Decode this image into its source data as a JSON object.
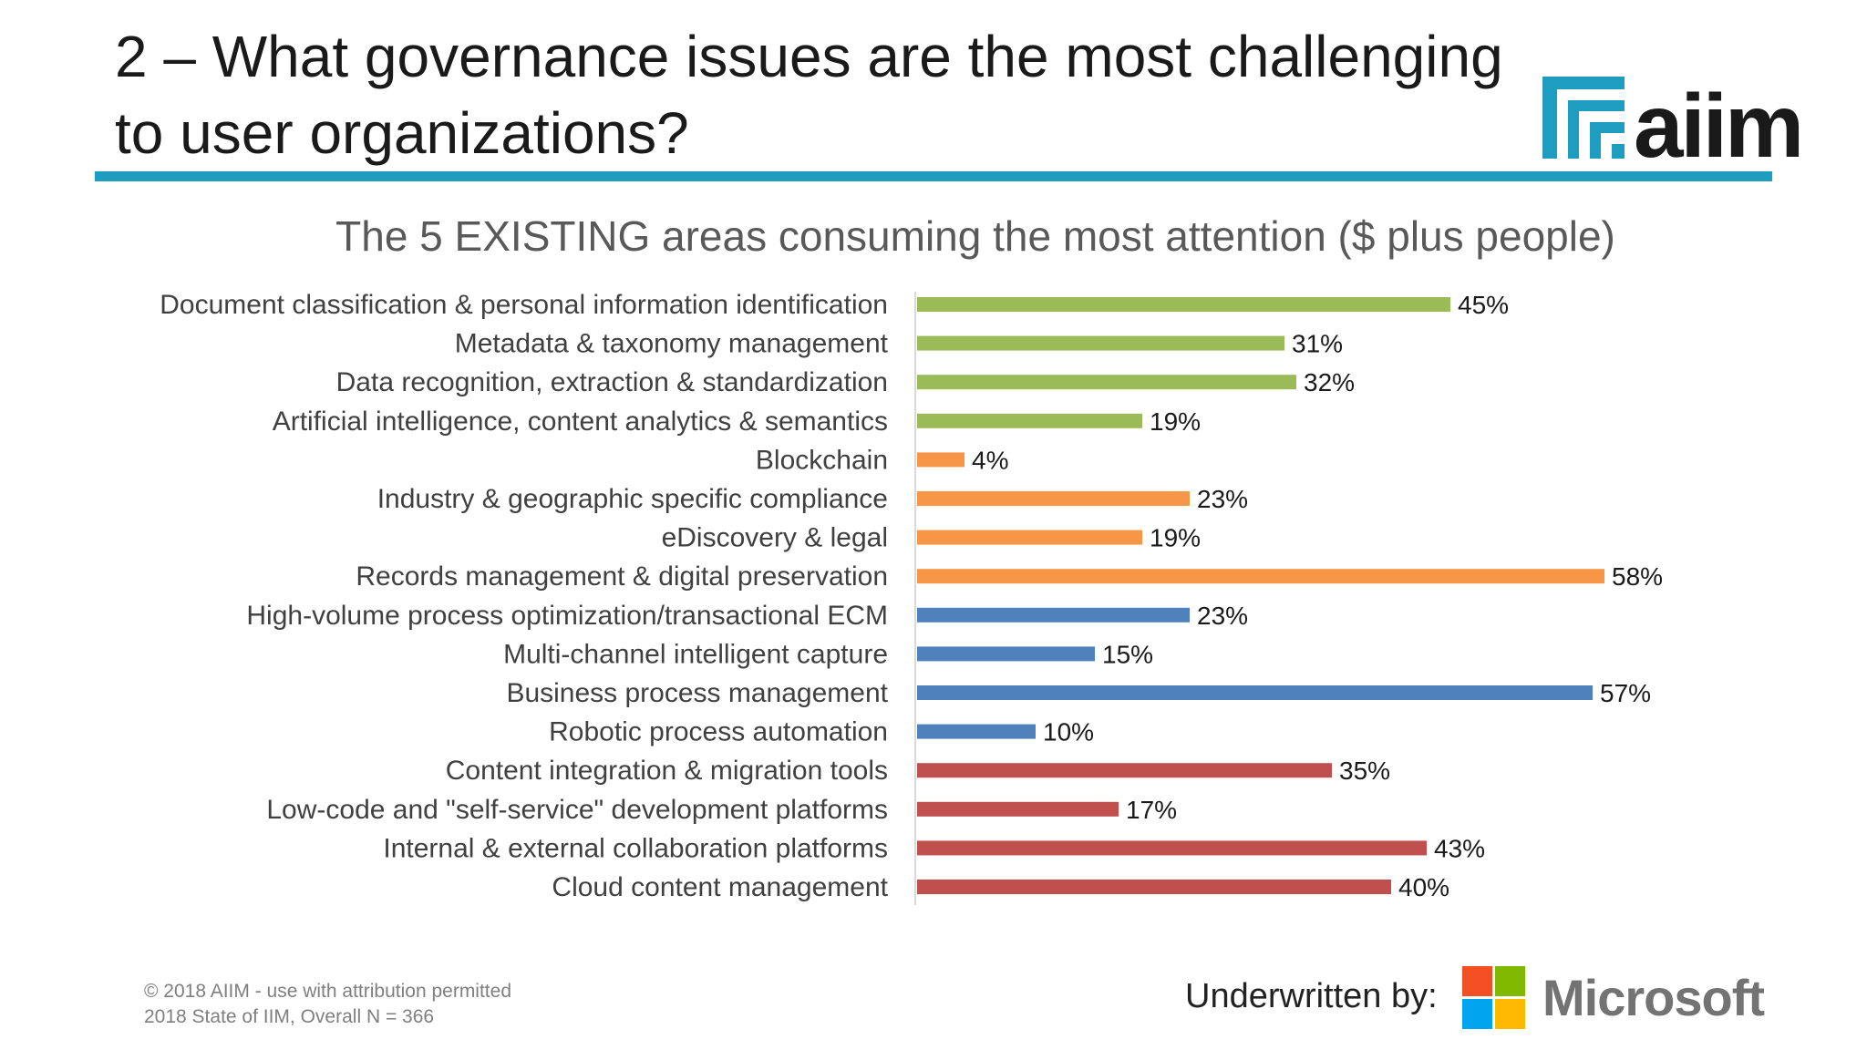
{
  "slide": {
    "title": "2 – What governance issues are the most challenging to user organizations?",
    "copyright": "© 2018 AIIM - use with attribution permitted",
    "source": "2018 State of IIM, Overall N = 366",
    "underwritten_label": "Underwritten by:",
    "sponsor_name": "Microsoft",
    "logo_text": "aiim"
  },
  "colors": {
    "rule": "#1e9dc0",
    "green": "#9bbb59",
    "orange": "#f79646",
    "blue": "#4f81bd",
    "red": "#c0504d"
  },
  "chart_data": {
    "type": "bar",
    "orientation": "horizontal",
    "title": "The 5 EXISTING areas consuming the most attention ($ plus people)",
    "xlabel": "",
    "ylabel": "",
    "xlim": [
      0,
      100
    ],
    "grid": false,
    "legend": "none",
    "categories": [
      "Document classification & personal information identification",
      "Metadata & taxonomy management",
      "Data recognition, extraction & standardization",
      "Artificial intelligence, content analytics & semantics",
      "Blockchain",
      "Industry & geographic specific compliance",
      "eDiscovery & legal",
      "Records management & digital preservation",
      "High-volume process optimization/transactional ECM",
      "Multi-channel intelligent capture",
      "Business process management",
      "Robotic process automation",
      "Content integration & migration tools",
      "Low-code and \"self-service\" development platforms",
      "Internal & external collaboration platforms",
      "Cloud content management"
    ],
    "values": [
      45,
      31,
      32,
      19,
      4,
      23,
      19,
      58,
      23,
      15,
      57,
      10,
      35,
      17,
      43,
      40
    ],
    "value_labels": [
      "45%",
      "31%",
      "32%",
      "19%",
      "4%",
      "23%",
      "19%",
      "58%",
      "23%",
      "15%",
      "57%",
      "10%",
      "35%",
      "17%",
      "43%",
      "40%"
    ],
    "bar_colors": [
      "#9bbb59",
      "#9bbb59",
      "#9bbb59",
      "#9bbb59",
      "#f79646",
      "#f79646",
      "#f79646",
      "#f79646",
      "#4f81bd",
      "#4f81bd",
      "#4f81bd",
      "#4f81bd",
      "#c0504d",
      "#c0504d",
      "#c0504d",
      "#c0504d"
    ]
  }
}
